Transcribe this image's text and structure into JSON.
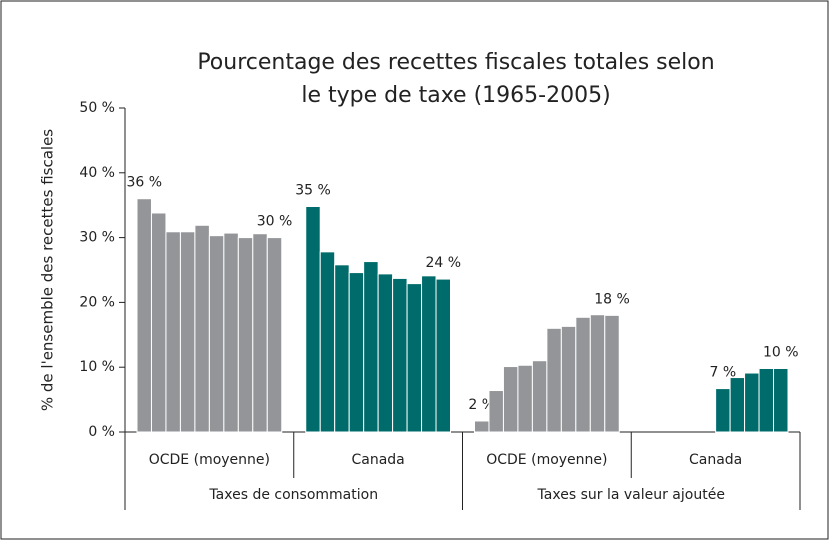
{
  "chart_data": {
    "type": "bar",
    "title": [
      "Pourcentage des recettes fiscales totales selon",
      "le type de taxe (1965-2005)"
    ],
    "y_label": "% de l'ensemble des recettes fiscales",
    "ylim": [
      0,
      50
    ],
    "yticks": [
      {
        "value": 0,
        "label": "0 %"
      },
      {
        "value": 10,
        "label": "10 %"
      },
      {
        "value": 20,
        "label": "20 %"
      },
      {
        "value": 30,
        "label": "30 %"
      },
      {
        "value": 40,
        "label": "40 %"
      },
      {
        "value": 50,
        "label": "50 %"
      }
    ],
    "supercategories": [
      "Taxes de consommation",
      "Taxes sur la valeur ajoutée"
    ],
    "groups": [
      {
        "category": "OCDE (moyenne)",
        "color": "#939598",
        "values": [
          36,
          33.8,
          30.9,
          30.9,
          31.9,
          30.3,
          30.7,
          30,
          30.6,
          30
        ],
        "value_labels": [
          "36 %",
          null,
          null,
          null,
          null,
          null,
          null,
          null,
          null,
          "30 %"
        ]
      },
      {
        "category": "Canada",
        "color": "#006b6b",
        "values": [
          34.8,
          27.8,
          25.8,
          24.6,
          26.3,
          24.4,
          23.7,
          22.9,
          24.1,
          23.6
        ],
        "value_labels": [
          "35 %",
          null,
          null,
          null,
          null,
          null,
          null,
          null,
          null,
          "24 %"
        ]
      },
      {
        "category": "OCDE (moyenne)",
        "color": "#939598",
        "values": [
          1.7,
          6.4,
          10.1,
          10.3,
          11,
          16,
          16.3,
          17.7,
          18.1,
          18
        ],
        "value_labels": [
          "2 %",
          null,
          null,
          null,
          null,
          null,
          null,
          null,
          null,
          "18 %"
        ]
      },
      {
        "category": "Canada",
        "color": "#006b6b",
        "values": [
          null,
          null,
          null,
          null,
          null,
          6.7,
          8.4,
          9.1,
          9.8,
          9.8
        ],
        "value_labels": [
          null,
          null,
          null,
          null,
          null,
          "7 %",
          null,
          null,
          null,
          "10 %"
        ]
      }
    ]
  }
}
